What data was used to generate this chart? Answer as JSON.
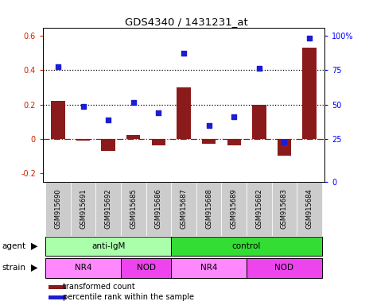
{
  "title": "GDS4340 / 1431231_at",
  "samples": [
    "GSM915690",
    "GSM915691",
    "GSM915692",
    "GSM915685",
    "GSM915686",
    "GSM915687",
    "GSM915688",
    "GSM915689",
    "GSM915682",
    "GSM915683",
    "GSM915684"
  ],
  "transformed_count": [
    0.22,
    -0.01,
    -0.07,
    0.02,
    -0.04,
    0.3,
    -0.03,
    -0.04,
    0.2,
    -0.1,
    0.53
  ],
  "percentile_rank_left": [
    0.42,
    0.19,
    0.11,
    0.21,
    0.15,
    0.5,
    0.08,
    0.13,
    0.41,
    -0.02,
    0.59
  ],
  "ylim_left": [
    -0.25,
    0.65
  ],
  "ylim_right": [
    0,
    110
  ],
  "yticks_left": [
    -0.2,
    0.0,
    0.2,
    0.4,
    0.6
  ],
  "ytick_labels_left": [
    "-0.2",
    "0",
    "0.2",
    "0.4",
    "0.6"
  ],
  "yticks_right_pos": [
    -0.25,
    0.0,
    0.2,
    0.4,
    0.6
  ],
  "ytick_labels_right": [
    "0",
    "25",
    "50",
    "75",
    "100%"
  ],
  "hlines_dotted": [
    0.2,
    0.4
  ],
  "hline_zero": 0.0,
  "bar_color": "#8B1A1A",
  "dot_color": "#1C1CD4",
  "zero_line_color": "#CC0000",
  "agent_groups": [
    {
      "label": "anti-IgM",
      "start": 0,
      "end": 5,
      "color": "#AAFFAA"
    },
    {
      "label": "control",
      "start": 5,
      "end": 11,
      "color": "#33DD33"
    }
  ],
  "strain_groups": [
    {
      "label": "NR4",
      "start": 0,
      "end": 3,
      "color": "#FF88FF"
    },
    {
      "label": "NOD",
      "start": 3,
      "end": 5,
      "color": "#EE44EE"
    },
    {
      "label": "NR4",
      "start": 5,
      "end": 8,
      "color": "#FF88FF"
    },
    {
      "label": "NOD",
      "start": 8,
      "end": 11,
      "color": "#EE44EE"
    }
  ],
  "agent_label": "agent",
  "strain_label": "strain",
  "sample_bg_color": "#CCCCCC",
  "legend_bar_label": "transformed count",
  "legend_dot_label": "percentile rank within the sample"
}
